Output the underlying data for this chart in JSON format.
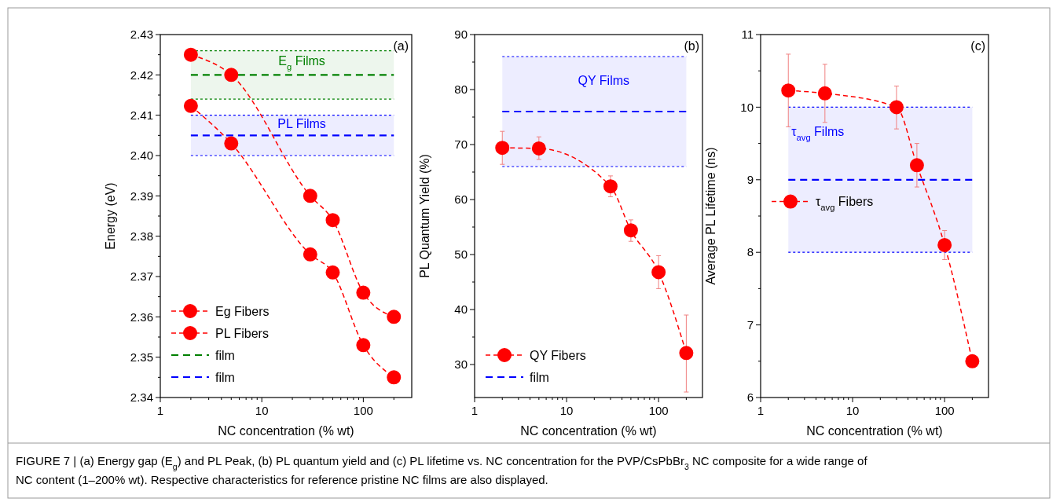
{
  "chart_data": [
    {
      "type": "line",
      "title": "(a)",
      "xlabel": "NC concentration (% wt)",
      "ylabel": "Energy (eV)",
      "log": "x",
      "xlim": [
        1,
        300
      ],
      "xticks": [
        1,
        10,
        100
      ],
      "ylim": [
        2.34,
        2.43
      ],
      "yticks": [
        2.34,
        2.35,
        2.36,
        2.37,
        2.38,
        2.39,
        {
          "value": 2.4,
          "label": "2.40"
        },
        2.41,
        2.42,
        2.43
      ],
      "marker": "circle",
      "line_style": "dashed",
      "legend": "bottom left",
      "series": [
        {
          "name": "Eg Fibers",
          "color": "#ff0000",
          "x": [
            2,
            5,
            30,
            50,
            100,
            200
          ],
          "values": [
            2.425,
            2.42,
            2.39,
            2.384,
            2.366,
            2.36
          ]
        },
        {
          "name": "PL Fibers",
          "color": "#ff0000",
          "x": [
            2,
            5,
            30,
            50,
            100,
            200
          ],
          "values": [
            2.4123,
            2.403,
            2.3755,
            2.371,
            2.353,
            2.345
          ]
        }
      ],
      "ref_lines": [
        {
          "axis": "y",
          "value": 2.42,
          "label": "film",
          "color": "#008000",
          "line_style": "dashed"
        },
        {
          "axis": "y",
          "value": 2.405,
          "label": "film",
          "color": "#0000ff",
          "line_style": "dashed"
        },
        {
          "axis": "y",
          "value": 2.426,
          "color": "#008000",
          "line_style": "dotted"
        },
        {
          "axis": "y",
          "value": 2.414,
          "color": "#008000",
          "line_style": "dotted"
        },
        {
          "axis": "y",
          "value": 2.41,
          "color": "#0000ff",
          "line_style": "dotted"
        },
        {
          "axis": "y",
          "value": 2.4,
          "color": "#0000ff",
          "line_style": "dotted"
        }
      ],
      "bands": [
        {
          "axis": "y",
          "from": 2.414,
          "to": 2.426,
          "label": "E$_{g}$ Films",
          "color": "#008000"
        },
        {
          "axis": "y",
          "from": 2.4,
          "to": 2.41,
          "label": "PL Films",
          "color": "#0000ff"
        }
      ],
      "annotations": [
        "FIGURE 7 | (a) Energy gap (E$_{g}$) and PL Peak, (b) PL quantum yield and (c) PL lifetime vs. NC concentration for the PVP/CsPbBr$_{3}$ NC composite for a wide range of NC content (1–200% wt). Respective characteristics for reference pristine NC films are also displayed."
      ]
    },
    {
      "type": "line",
      "title": "(b)",
      "xlabel": "NC concentration (% wt)",
      "ylabel": "PL Quantum Yield (%)",
      "log": "x",
      "xlim": [
        1,
        300
      ],
      "xticks": [
        1,
        10,
        100
      ],
      "ylim": [
        24,
        90
      ],
      "yticks": [
        30,
        40,
        50,
        60,
        70,
        80,
        90
      ],
      "marker": "circle",
      "line_style": "dashed",
      "legend": "bottom left",
      "series": [
        {
          "name": "QY Fibers",
          "color": "#ff0000",
          "x": [
            2,
            5,
            30,
            50,
            100,
            200
          ],
          "values": [
            69.4,
            69.3,
            62.4,
            54.4,
            46.8,
            32.1
          ],
          "errors": [
            [
              66.4,
              72.4
            ],
            [
              67.3,
              71.4
            ],
            [
              60.5,
              64.3
            ],
            [
              52.4,
              56.3
            ],
            [
              43.8,
              49.8
            ],
            [
              25,
              39
            ]
          ]
        }
      ],
      "ref_lines": [
        {
          "axis": "y",
          "value": 76,
          "label": "film",
          "color": "#0000ff",
          "line_style": "dashed"
        },
        {
          "axis": "y",
          "value": 86,
          "color": "#0000ff",
          "line_style": "dotted"
        },
        {
          "axis": "y",
          "value": 66,
          "color": "#0000ff",
          "line_style": "dotted"
        }
      ],
      "bands": [
        {
          "axis": "y",
          "from": 66,
          "to": 86,
          "label": "QY Films",
          "color": "#0000ff"
        }
      ]
    },
    {
      "type": "line",
      "title": "(c)",
      "xlabel": "NC concentration (% wt)",
      "ylabel": "Average PL Lifetime (ns)",
      "log": "x",
      "xlim": [
        1,
        300
      ],
      "xticks": [
        1,
        10,
        100
      ],
      "ylim": [
        6,
        11
      ],
      "yticks": [
        6,
        7,
        8,
        9,
        10,
        11
      ],
      "marker": "circle",
      "line_style": "dashed",
      "legend": "left",
      "series": [
        {
          "name": "τ$_{avg}$ Fibers",
          "color": "#ff0000",
          "x": [
            2,
            5,
            30,
            50,
            100,
            200
          ],
          "values": [
            10.23,
            10.19,
            10.0,
            9.2,
            8.1,
            6.5
          ],
          "errors": [
            [
              9.73,
              10.73
            ],
            [
              9.79,
              10.59
            ],
            [
              9.7,
              10.29
            ],
            [
              8.9,
              9.5
            ],
            [
              7.9,
              8.3
            ],
            null
          ]
        }
      ],
      "ref_lines": [
        {
          "axis": "y",
          "value": 9,
          "color": "#0000ff",
          "line_style": "dashed"
        },
        {
          "axis": "y",
          "value": 10,
          "color": "#0000ff",
          "line_style": "dotted"
        },
        {
          "axis": "y",
          "value": 8,
          "color": "#0000ff",
          "line_style": "dotted"
        }
      ],
      "bands": [
        {
          "axis": "y",
          "from": 8,
          "to": 10,
          "label": "τ$_{avg}$ Films",
          "color": "#0000ff"
        }
      ]
    }
  ]
}
